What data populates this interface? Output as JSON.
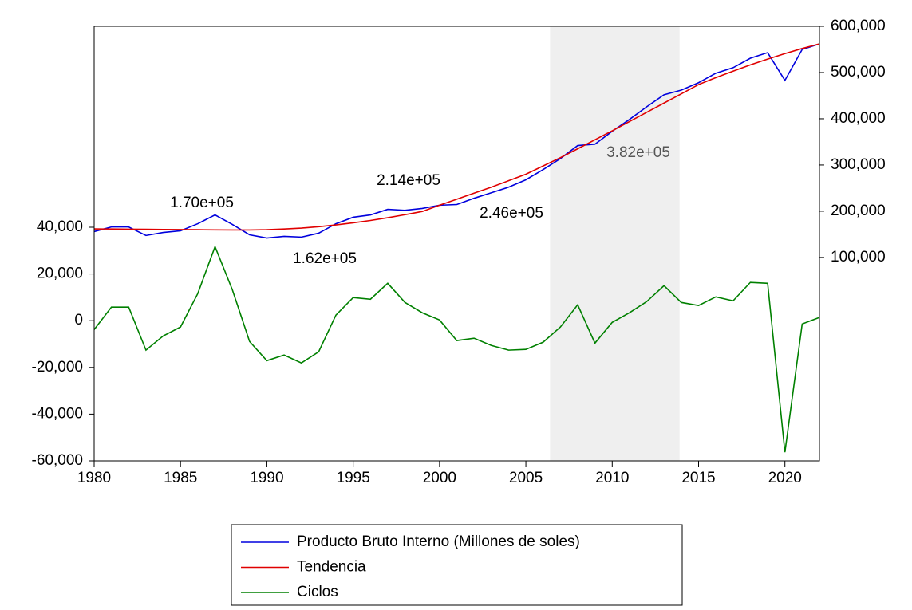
{
  "chart_data": {
    "type": "line",
    "x": [
      1980,
      1981,
      1982,
      1983,
      1984,
      1985,
      1986,
      1987,
      1988,
      1989,
      1990,
      1991,
      1992,
      1993,
      1994,
      1995,
      1996,
      1997,
      1998,
      1999,
      2000,
      2001,
      2002,
      2003,
      2004,
      2005,
      2006,
      2007,
      2008,
      2009,
      2010,
      2011,
      2012,
      2013,
      2014,
      2015,
      2016,
      2017,
      2018,
      2019,
      2020,
      2021,
      2022
    ],
    "xlim": [
      1980,
      2022
    ],
    "xticks": [
      1980,
      1985,
      1990,
      1995,
      2000,
      2005,
      2010,
      2015,
      2020
    ],
    "ylim": [
      -60000,
      126000
    ],
    "yticks": [
      {
        "value": -60000,
        "label": "-60,000"
      },
      {
        "value": -40000,
        "label": "-40,000"
      },
      {
        "value": -20000,
        "label": "-20,000"
      },
      0,
      {
        "value": 20000,
        "label": "20,000"
      },
      {
        "value": 40000,
        "label": "40,000"
      }
    ],
    "y2lim": [
      -340000,
      600000
    ],
    "y2ticks": [
      {
        "value": 100000,
        "label": "100,000"
      },
      {
        "value": 200000,
        "label": "200,000"
      },
      {
        "value": 300000,
        "label": "300,000"
      },
      {
        "value": 400000,
        "label": "400,000"
      },
      {
        "value": 500000,
        "label": "500,000"
      },
      {
        "value": 600000,
        "label": "600,000"
      }
    ],
    "shade": [
      2006.4,
      2013.9
    ],
    "shade_color": "#efefef",
    "series": [
      {
        "name": "Producto Bruto Interno (Millones de soles)",
        "color": "#0000dd",
        "axis": "y2",
        "values": [
          156000,
          166000,
          166000,
          147500,
          154000,
          157700,
          173000,
          192000,
          171500,
          149000,
          142000,
          145700,
          144000,
          152500,
          173000,
          187000,
          192000,
          204000,
          202000,
          206000,
          213000,
          214500,
          228000,
          240000,
          252000,
          268000,
          290000,
          314000,
          342000,
          345000,
          373000,
          398500,
          426000,
          452000,
          462000,
          478000,
          498500,
          510500,
          531000,
          543000,
          483000,
          550000,
          562000
        ]
      },
      {
        "name": "Tendencia",
        "color": "#e00000",
        "axis": "y2",
        "values": [
          161800,
          161500,
          161200,
          160900,
          160600,
          160300,
          160000,
          159700,
          159500,
          159500,
          160000,
          161500,
          163500,
          166500,
          170500,
          175000,
          180000,
          186000,
          192500,
          199500,
          213000,
          226000,
          239000,
          252000,
          266000,
          280000,
          298000,
          316000,
          335000,
          354500,
          374000,
          394000,
          414000,
          434000,
          454000,
          474000,
          489000,
          503000,
          516500,
          529000,
          541000,
          552000,
          562000
        ]
      },
      {
        "name": "Ciclos",
        "color": "#008000",
        "axis": "y",
        "values": [
          -3800,
          5800,
          5800,
          -12600,
          -6500,
          -2700,
          11600,
          31700,
          13300,
          -8900,
          -17100,
          -14700,
          -18100,
          -13300,
          2400,
          9900,
          9200,
          16000,
          7800,
          3400,
          300,
          -8500,
          -7500,
          -10600,
          -12600,
          -12300,
          -9200,
          -2700,
          6800,
          -9600,
          -700,
          3400,
          8200,
          15000,
          7800,
          6500,
          10200,
          8500,
          16400,
          16000,
          -56300,
          -1400,
          1400
        ]
      }
    ],
    "annotations": [
      "1.70e+05",
      "1.62e+05",
      "2.14e+05",
      "2.46e+05",
      "3.82e+05"
    ]
  }
}
